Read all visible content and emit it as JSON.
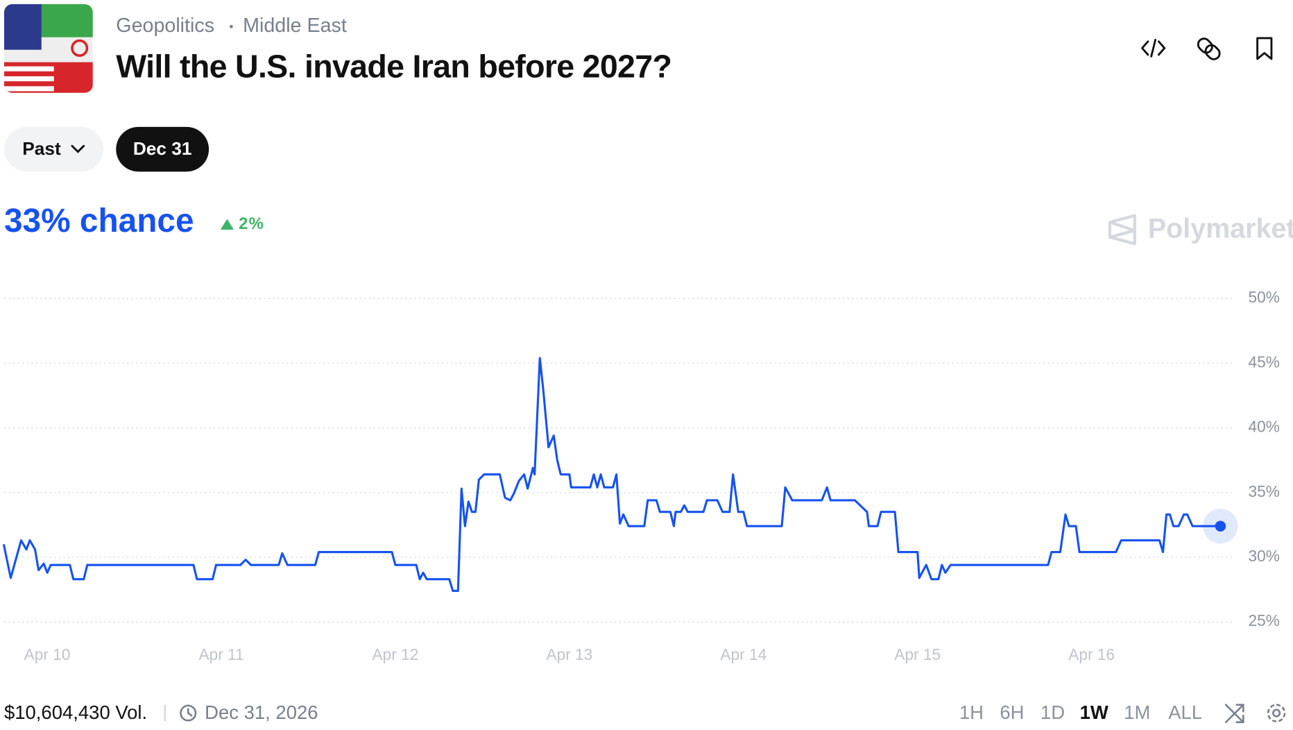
{
  "header": {
    "breadcrumb": [
      "Geopolitics",
      "Middle East"
    ],
    "title": "Will the U.S. invade Iran before 2027?"
  },
  "buttons": {
    "past": "Past",
    "date": "Dec 31"
  },
  "chance": "33% chance",
  "change": "2%",
  "brand": "Polymarket",
  "chart_data": {
    "type": "line",
    "color": "#1652f0",
    "x": [
      9.75,
      9.79,
      9.85,
      9.88,
      9.9,
      9.93,
      9.95,
      9.98,
      10.0,
      10.02,
      10.13,
      10.15,
      10.21,
      10.23,
      10.84,
      10.86,
      10.95,
      10.97,
      11.11,
      11.14,
      11.17,
      11.33,
      11.35,
      11.38,
      11.54,
      11.56,
      11.98,
      12.0,
      12.12,
      12.14,
      12.16,
      12.18,
      12.31,
      12.33,
      12.36,
      12.38,
      12.4,
      12.42,
      12.44,
      12.46,
      12.48,
      12.51,
      12.6,
      12.63,
      12.66,
      12.68,
      12.71,
      12.74,
      12.76,
      12.79,
      12.8,
      12.83,
      12.85,
      12.88,
      12.91,
      12.93,
      12.95,
      13.0,
      13.01,
      13.12,
      13.14,
      13.16,
      13.18,
      13.2,
      13.25,
      13.27,
      13.29,
      13.31,
      13.34,
      13.43,
      13.45,
      13.5,
      13.52,
      13.58,
      13.6,
      13.61,
      13.64,
      13.66,
      13.68,
      13.77,
      13.79,
      13.85,
      13.88,
      13.92,
      13.94,
      13.97,
      14.0,
      14.02,
      14.22,
      14.24,
      14.28,
      14.45,
      14.48,
      14.5,
      14.64,
      14.71,
      14.72,
      14.77,
      14.79,
      14.87,
      14.89,
      15.0,
      15.01,
      15.05,
      15.08,
      15.12,
      15.14,
      15.16,
      15.19,
      15.75,
      15.77,
      15.82,
      15.85,
      15.87,
      15.91,
      15.93,
      16.14,
      16.17,
      16.39,
      16.41,
      16.43,
      16.45,
      16.47,
      16.5,
      16.53,
      16.55,
      16.58,
      16.74
    ],
    "values": [
      31.0,
      28.4,
      31.3,
      30.6,
      31.3,
      30.6,
      29.0,
      29.5,
      28.8,
      29.4,
      29.4,
      28.3,
      28.3,
      29.4,
      29.4,
      28.3,
      28.3,
      29.4,
      29.4,
      29.8,
      29.4,
      29.4,
      30.3,
      29.4,
      29.4,
      30.4,
      30.4,
      29.4,
      29.4,
      28.3,
      28.8,
      28.3,
      28.3,
      27.4,
      27.4,
      35.3,
      32.4,
      34.3,
      33.5,
      33.5,
      36.0,
      36.4,
      36.4,
      34.6,
      34.4,
      34.9,
      35.9,
      36.4,
      35.3,
      36.9,
      36.4,
      45.4,
      42.9,
      38.5,
      39.4,
      37.5,
      36.4,
      36.4,
      35.4,
      35.4,
      36.4,
      35.4,
      36.4,
      35.4,
      35.4,
      36.4,
      32.6,
      33.3,
      32.4,
      32.4,
      34.4,
      34.4,
      33.5,
      33.5,
      32.4,
      33.5,
      33.5,
      34.0,
      33.5,
      33.5,
      34.4,
      34.4,
      33.5,
      33.5,
      36.4,
      33.5,
      33.5,
      32.4,
      32.4,
      35.4,
      34.4,
      34.4,
      35.4,
      34.4,
      34.4,
      33.5,
      32.4,
      32.4,
      33.5,
      33.5,
      30.4,
      30.4,
      28.4,
      29.4,
      28.3,
      28.3,
      29.4,
      28.8,
      29.4,
      29.4,
      30.4,
      30.4,
      33.3,
      32.4,
      32.4,
      30.4,
      30.4,
      31.3,
      31.3,
      30.4,
      33.3,
      33.3,
      32.4,
      32.4,
      33.3,
      33.3,
      32.4,
      32.4
    ],
    "xlim": [
      9.75,
      16.8
    ],
    "xticks": [
      {
        "value": 10,
        "label": "Apr 10"
      },
      {
        "value": 11,
        "label": "Apr 11"
      },
      {
        "value": 12,
        "label": "Apr 12"
      },
      {
        "value": 13,
        "label": "Apr 13"
      },
      {
        "value": 14,
        "label": "Apr 14"
      },
      {
        "value": 15,
        "label": "Apr 15"
      },
      {
        "value": 16,
        "label": "Apr 16"
      }
    ],
    "ylim": [
      25,
      50
    ],
    "yticks": [
      {
        "value": 50,
        "label": "50%"
      },
      {
        "value": 45,
        "label": "45%"
      },
      {
        "value": 40,
        "label": "40%"
      },
      {
        "value": 35,
        "label": "35%"
      },
      {
        "value": 30,
        "label": "30%"
      },
      {
        "value": 25,
        "label": "25%"
      }
    ],
    "grid": true
  },
  "footer": {
    "volume": "$10,604,430 Vol.",
    "end_date": "Dec 31, 2026",
    "ranges": [
      "1H",
      "6H",
      "1D",
      "1W",
      "1M",
      "ALL"
    ],
    "selected_range": "1W"
  }
}
